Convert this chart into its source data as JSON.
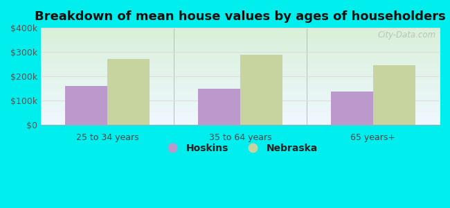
{
  "title": "Breakdown of mean house values by ages of householders",
  "categories": [
    "25 to 34 years",
    "35 to 64 years",
    "65 years+"
  ],
  "hoskins_values": [
    160000,
    148000,
    138000
  ],
  "nebraska_values": [
    272000,
    288000,
    245000
  ],
  "hoskins_color": "#bb99cc",
  "nebraska_color": "#c8d4a0",
  "ylim": [
    0,
    400000
  ],
  "yticks": [
    0,
    100000,
    200000,
    300000,
    400000
  ],
  "ytick_labels": [
    "$0",
    "$100k",
    "$200k",
    "$300k",
    "$400k"
  ],
  "background_outer": "#00eeee",
  "bar_width": 0.32,
  "legend_labels": [
    "Hoskins",
    "Nebraska"
  ],
  "watermark": "City-Data.com",
  "title_fontsize": 13,
  "axis_fontsize": 9,
  "grid_color": "#dddddd",
  "bg_top": "#f0f8ff",
  "bg_bottom": "#d8f0d8"
}
